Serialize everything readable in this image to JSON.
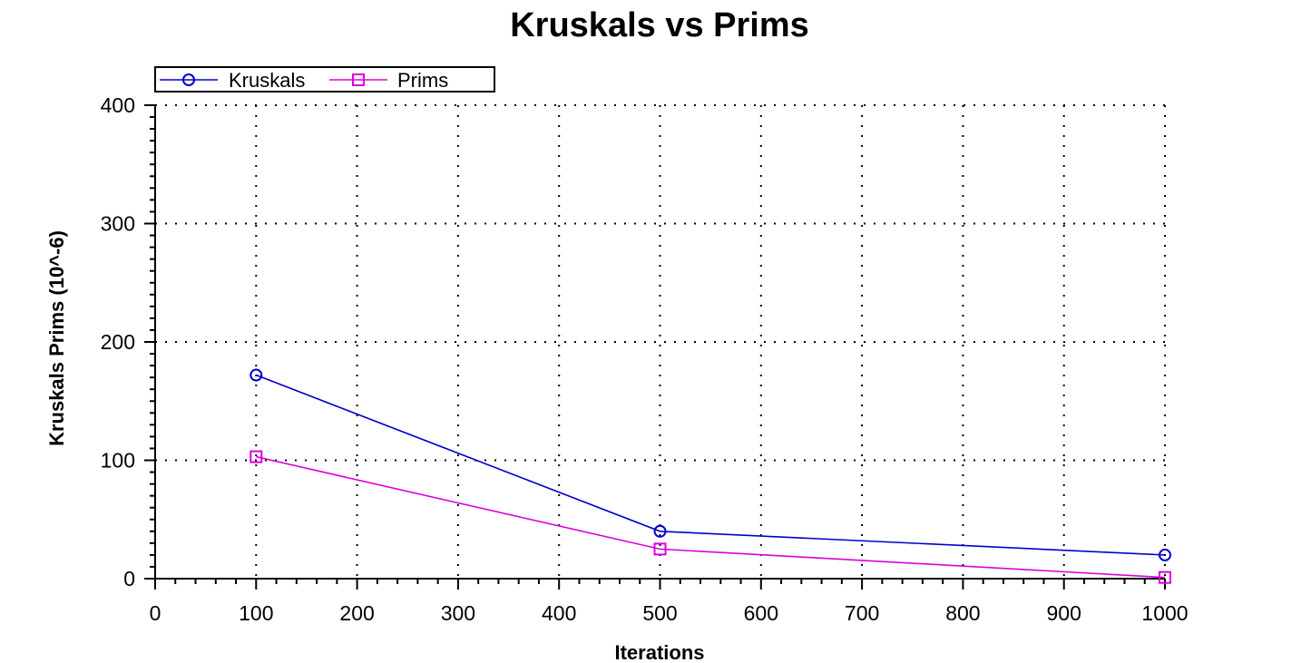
{
  "chart_data": {
    "type": "line",
    "title": "Kruskals vs Prims",
    "xlabel": "Iterations",
    "ylabel": "Kruskals Prims (10^-6)",
    "xlim": [
      0,
      1000
    ],
    "ylim": [
      0,
      400
    ],
    "x_ticks": [
      0,
      100,
      200,
      300,
      400,
      500,
      600,
      700,
      800,
      900,
      1000
    ],
    "y_ticks": [
      0,
      100,
      200,
      300,
      400
    ],
    "grid": true,
    "legend_position": "top-left",
    "x": [
      100,
      500,
      1000
    ],
    "series": [
      {
        "name": "Kruskals",
        "values": [
          172,
          40,
          20
        ],
        "color": "#0000cc",
        "marker": "circle"
      },
      {
        "name": "Prims",
        "values": [
          103,
          25,
          1
        ],
        "color": "#dd00dd",
        "marker": "square"
      }
    ]
  }
}
